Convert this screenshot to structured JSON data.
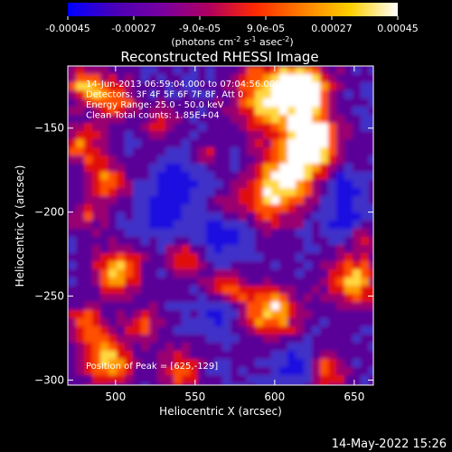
{
  "colorbar": {
    "tick_labels": [
      "-0.00045",
      "-0.00027",
      "-9.0e-05",
      "9.0e-05",
      "0.00027",
      "0.00045"
    ],
    "tick_values": [
      -0.00045,
      -0.00027,
      -9e-05,
      9e-05,
      0.00027,
      0.00045
    ],
    "range": [
      -0.00045,
      0.00045
    ],
    "units_prefix": "(photons cm",
    "units_exp1": "-2",
    "units_mid": " s",
    "units_exp2": "-1",
    "units_mid2": " asec",
    "units_exp3": "-2",
    "units_suffix": ")",
    "colors": [
      "#0000ff",
      "#4a00b8",
      "#7800a0",
      "#b00060",
      "#ff2a00",
      "#ff8000",
      "#ffd000",
      "#ffffff"
    ]
  },
  "chart_data": {
    "type": "heatmap",
    "title": "Reconstructed RHESSI Image",
    "xlabel": "Heliocentric X (arcsec)",
    "ylabel": "Heliocentric Y (arcsec)",
    "xlim": [
      470,
      662
    ],
    "ylim": [
      -303,
      -113
    ],
    "x_ticks": [
      500,
      550,
      600,
      650
    ],
    "y_ticks": [
      -150,
      -200,
      -250,
      -300
    ],
    "x_tick_labels": [
      "500",
      "550",
      "600",
      "650"
    ],
    "y_tick_labels": [
      "−150",
      "−200",
      "−250",
      "−300"
    ],
    "info_lines": [
      "14-Jun-2013 06:59:04.000 to 07:04:56.000",
      "Detectors: 3F 4F 5F 6F 7F 8F, Att 0",
      "Energy Range: 25.0 - 50.0 keV",
      "Clean    Total counts: 1.85E+04"
    ],
    "peak_label": "Position of Peak = [625,-129]",
    "peak_position": [
      625,
      -129
    ]
  },
  "timestamp": "14-May-2022 15:26"
}
